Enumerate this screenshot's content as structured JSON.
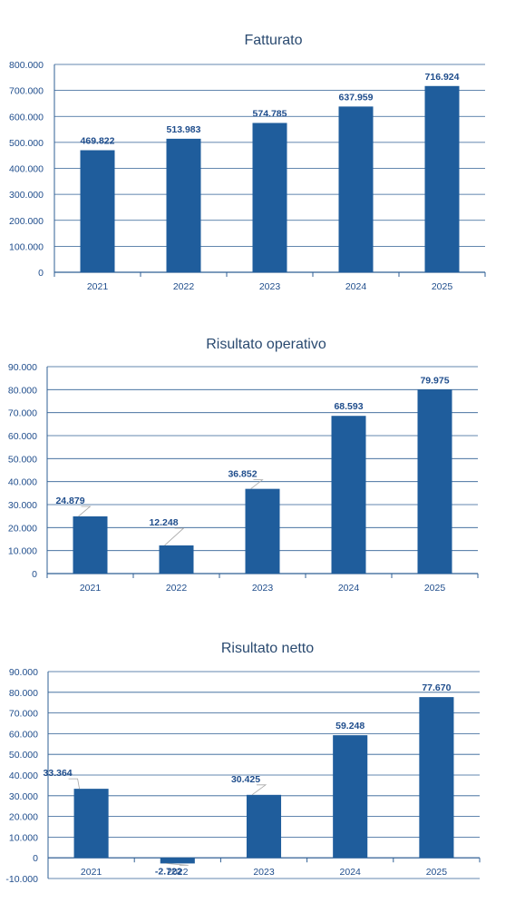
{
  "colors": {
    "bar": "#1f5d9c",
    "axis": "#2f5f94",
    "grid": "#2f5f94",
    "text": "#1f4d8c",
    "leader": "#a6a6a6"
  },
  "chart_data": [
    {
      "type": "bar",
      "title": "Fatturato",
      "categories": [
        "2021",
        "2022",
        "2023",
        "2024",
        "2025"
      ],
      "values": [
        469822,
        513983,
        574785,
        637959,
        716924
      ],
      "data_labels": [
        "469.822",
        "513.983",
        "574.785",
        "637.959",
        "716.924"
      ],
      "yticks": [
        "0",
        "100.000",
        "200.000",
        "300.000",
        "400.000",
        "500.000",
        "600.000",
        "700.000",
        "800.000"
      ],
      "ylim": [
        0,
        800000
      ],
      "grid": true,
      "legend": "none"
    },
    {
      "type": "bar",
      "title": "Risultato operativo",
      "categories": [
        "2021",
        "2022",
        "2023",
        "2024",
        "2025"
      ],
      "values": [
        24879,
        12248,
        36852,
        68593,
        79975
      ],
      "data_labels": [
        "24.879",
        "12.248",
        "36.852",
        "68.593",
        "79.975"
      ],
      "yticks": [
        "0",
        "10.000",
        "20.000",
        "30.000",
        "40.000",
        "50.000",
        "60.000",
        "70.000",
        "80.000",
        "90.000"
      ],
      "ylim": [
        0,
        90000
      ],
      "grid": true,
      "legend": "none"
    },
    {
      "type": "bar",
      "title": "Risultato netto",
      "categories": [
        "2021",
        "2022",
        "2023",
        "2024",
        "2025"
      ],
      "values": [
        33364,
        -2722,
        30425,
        59248,
        77670
      ],
      "data_labels": [
        "33.364",
        "-2.722",
        "30.425",
        "59.248",
        "77.670"
      ],
      "yticks": [
        "-10.000",
        "0",
        "10.000",
        "20.000",
        "30.000",
        "40.000",
        "50.000",
        "60.000",
        "70.000",
        "80.000",
        "90.000"
      ],
      "ylim": [
        -10000,
        90000
      ],
      "grid": true,
      "legend": "none"
    }
  ]
}
